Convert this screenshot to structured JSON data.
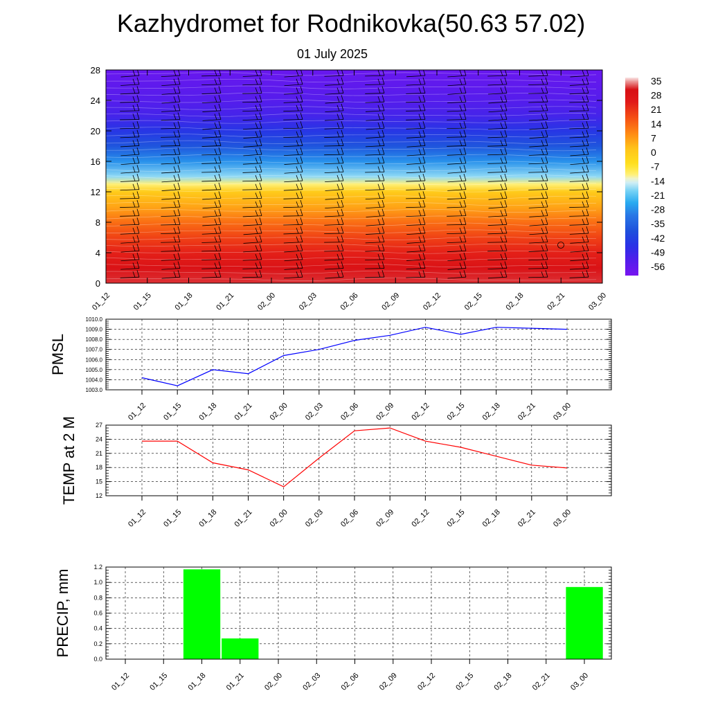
{
  "header": {
    "title": "Kazhydromet for Rodnikovka(50.63 57.02)",
    "subtitle": "01 July 2025"
  },
  "chart_data": [
    {
      "type": "heatmap",
      "title": "",
      "x_ticks": [
        "01_12",
        "01_15",
        "01_18",
        "01_21",
        "02_00",
        "02_03",
        "02_06",
        "02_09",
        "02_12",
        "02_15",
        "02_18",
        "02_21",
        "03_00"
      ],
      "y_ticks": [
        0,
        4,
        8,
        12,
        16,
        20,
        24,
        28
      ],
      "ylim": [
        0,
        28
      ],
      "colorbar": {
        "labels": [
          "35",
          "28",
          "21",
          "14",
          "7",
          "0",
          "-7",
          "-14",
          "-21",
          "-28",
          "-35",
          "-42",
          "-49",
          "-56"
        ],
        "range": [
          -60,
          38
        ]
      },
      "temperature_profile": [
        {
          "y": 0,
          "t": 33
        },
        {
          "y": 2,
          "t": 30
        },
        {
          "y": 4,
          "t": 25
        },
        {
          "y": 6,
          "t": 20
        },
        {
          "y": 8,
          "t": 14
        },
        {
          "y": 10,
          "t": 7
        },
        {
          "y": 12,
          "t": 1
        },
        {
          "y": 13,
          "t": -10
        },
        {
          "y": 14,
          "t": -17
        },
        {
          "y": 16,
          "t": -27
        },
        {
          "y": 18,
          "t": -37
        },
        {
          "y": 20,
          "t": -44
        },
        {
          "y": 22,
          "t": -50
        },
        {
          "y": 24,
          "t": -53
        },
        {
          "y": 26,
          "t": -55
        },
        {
          "y": 28,
          "t": -57
        }
      ],
      "wind_barbs": true
    },
    {
      "type": "line",
      "ylabel": "PMSL",
      "categories": [
        "01_12",
        "01_15",
        "01_18",
        "01_21",
        "02_00",
        "02_03",
        "02_06",
        "02_09",
        "02_12",
        "02_15",
        "02_18",
        "02_21",
        "03_00"
      ],
      "values": [
        1004.2,
        1003.4,
        1005.0,
        1004.6,
        1006.4,
        1007.0,
        1007.9,
        1008.4,
        1009.2,
        1008.5,
        1009.2,
        1009.1,
        1009.0
      ],
      "ylim": [
        1003.0,
        1010.0
      ],
      "y_ticks": [
        "1003.0",
        "1004.0",
        "1005.0",
        "1006.0",
        "1007.0",
        "1008.0",
        "1009.0",
        "1010.0"
      ],
      "color": "#0000ff",
      "grid": true
    },
    {
      "type": "line",
      "ylabel": "TEMP at 2 M",
      "categories": [
        "01_12",
        "01_15",
        "01_18",
        "01_21",
        "02_00",
        "02_03",
        "02_06",
        "02_09",
        "02_12",
        "02_15",
        "02_18",
        "02_21",
        "03_00"
      ],
      "values": [
        23.6,
        23.6,
        19.0,
        17.5,
        13.9,
        20.0,
        25.8,
        26.4,
        23.6,
        22.3,
        20.4,
        18.5,
        17.9
      ],
      "ylim": [
        12,
        27
      ],
      "y_ticks": [
        "12",
        "15",
        "18",
        "21",
        "24",
        "27"
      ],
      "color": "#ff0000",
      "grid": true
    },
    {
      "type": "bar",
      "ylabel": "PRECIP, mm",
      "categories": [
        "01_12",
        "01_15",
        "01_18",
        "01_21",
        "02_00",
        "02_03",
        "02_06",
        "02_09",
        "02_12",
        "02_15",
        "02_18",
        "02_21",
        "03_00"
      ],
      "values": [
        0,
        0,
        1.17,
        0.27,
        0,
        0,
        0,
        0,
        0,
        0,
        0,
        0,
        0.94
      ],
      "ylim": [
        0,
        1.2
      ],
      "y_ticks": [
        "0.0",
        "0.2",
        "0.4",
        "0.6",
        "0.8",
        "1.0",
        "1.2"
      ],
      "color": "#00ff00",
      "grid": true
    }
  ]
}
